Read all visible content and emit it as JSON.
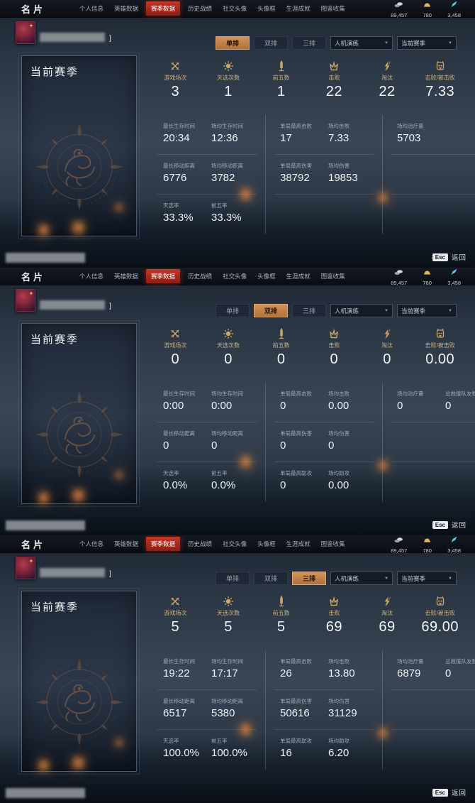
{
  "chrome": {
    "title": "名片",
    "tabs": [
      "个人信息",
      "英雄数据",
      "赛季数据",
      "历史战绩",
      "社交头像",
      "头像框",
      "生涯成就",
      "图鉴收集"
    ],
    "currencies": [
      {
        "name": "silver-coins",
        "value": "89,457"
      },
      {
        "name": "gold-ingot",
        "value": "780"
      },
      {
        "name": "blue-gem",
        "value": "3,458"
      }
    ],
    "esc_key": "Esc",
    "back_label": "返回"
  },
  "filters": {
    "queues": [
      "单排",
      "双排",
      "三排"
    ],
    "mode_dropdown": "人机演练",
    "season_dropdown": "当前赛季"
  },
  "card_title": "当前赛季",
  "name_suffix": "]",
  "panels": [
    {
      "summary": [
        {
          "label": "游戏场次",
          "value": "3"
        },
        {
          "label": "天选次数",
          "value": "1"
        },
        {
          "label": "前五数",
          "value": "1"
        },
        {
          "label": "击败",
          "value": "22"
        },
        {
          "label": "淘汰",
          "value": "22"
        },
        {
          "label": "击败/被击败",
          "value": "7.33"
        }
      ],
      "grid": [
        {
          "rows": [
            {
              "cells": [
                {
                  "label": "最长生存时间",
                  "value": "20:34"
                },
                {
                  "label": "场均生存时间",
                  "value": "12:36"
                }
              ]
            },
            {
              "cells": [
                {
                  "label": "最长移动距离",
                  "value": "6776"
                },
                {
                  "label": "场均移动距离",
                  "value": "3782"
                }
              ]
            },
            {
              "cells": [
                {
                  "label": "天选率",
                  "value": "33.3%"
                },
                {
                  "label": "前五率",
                  "value": "33.3%"
                }
              ]
            }
          ]
        },
        {
          "rows": [
            {
              "cells": [
                {
                  "label": "单局最高击败",
                  "value": "17"
                },
                {
                  "label": "场均击败",
                  "value": "7.33"
                }
              ]
            },
            {
              "cells": [
                {
                  "label": "单局最高伤害",
                  "value": "38792"
                },
                {
                  "label": "场均伤害",
                  "value": "19853"
                }
              ]
            },
            {
              "cells": [
                {
                  "label": "",
                  "value": ""
                },
                {
                  "label": "",
                  "value": ""
                }
              ]
            }
          ]
        },
        {
          "rows": [
            {
              "cells": [
                {
                  "label": "场均治疗量",
                  "value": "5703"
                },
                {
                  "label": "",
                  "value": ""
                }
              ]
            },
            {
              "cells": [
                {
                  "label": "",
                  "value": ""
                },
                {
                  "label": "",
                  "value": ""
                }
              ]
            },
            {
              "cells": [
                {
                  "label": "",
                  "value": ""
                },
                {
                  "label": "",
                  "value": ""
                }
              ]
            }
          ]
        }
      ]
    },
    {
      "summary": [
        {
          "label": "游戏场次",
          "value": "0"
        },
        {
          "label": "天选次数",
          "value": "0"
        },
        {
          "label": "前五数",
          "value": "0"
        },
        {
          "label": "击败",
          "value": "0"
        },
        {
          "label": "淘汰",
          "value": "0"
        },
        {
          "label": "击败/被击败",
          "value": "0.00"
        }
      ],
      "grid": [
        {
          "rows": [
            {
              "cells": [
                {
                  "label": "最长生存时间",
                  "value": "0:00"
                },
                {
                  "label": "场均生存时间",
                  "value": "0:00"
                }
              ]
            },
            {
              "cells": [
                {
                  "label": "最长移动距离",
                  "value": "0"
                },
                {
                  "label": "场均移动距离",
                  "value": "0"
                }
              ]
            },
            {
              "cells": [
                {
                  "label": "天选率",
                  "value": "0.0%"
                },
                {
                  "label": "前五率",
                  "value": "0.0%"
                }
              ]
            }
          ]
        },
        {
          "rows": [
            {
              "cells": [
                {
                  "label": "单局最高击败",
                  "value": "0"
                },
                {
                  "label": "场均击败",
                  "value": "0.00"
                }
              ]
            },
            {
              "cells": [
                {
                  "label": "单局最高伤害",
                  "value": "0"
                },
                {
                  "label": "场均伤害",
                  "value": "0"
                }
              ]
            },
            {
              "cells": [
                {
                  "label": "单局最高助攻",
                  "value": "0"
                },
                {
                  "label": "场均助攻",
                  "value": "0.00"
                }
              ]
            }
          ]
        },
        {
          "rows": [
            {
              "cells": [
                {
                  "label": "场均治疗量",
                  "value": "0"
                },
                {
                  "label": "总救援队友数",
                  "value": "0"
                }
              ]
            },
            {
              "cells": [
                {
                  "label": "",
                  "value": ""
                },
                {
                  "label": "",
                  "value": ""
                }
              ]
            },
            {
              "cells": [
                {
                  "label": "",
                  "value": ""
                },
                {
                  "label": "",
                  "value": ""
                }
              ]
            }
          ]
        }
      ]
    },
    {
      "summary": [
        {
          "label": "游戏场次",
          "value": "5"
        },
        {
          "label": "天选次数",
          "value": "5"
        },
        {
          "label": "前五数",
          "value": "5"
        },
        {
          "label": "击败",
          "value": "69"
        },
        {
          "label": "淘汰",
          "value": "69"
        },
        {
          "label": "击败/被击败",
          "value": "69.00"
        }
      ],
      "grid": [
        {
          "rows": [
            {
              "cells": [
                {
                  "label": "最长生存时间",
                  "value": "19:22"
                },
                {
                  "label": "场均生存时间",
                  "value": "17:17"
                }
              ]
            },
            {
              "cells": [
                {
                  "label": "最长移动距离",
                  "value": "6517"
                },
                {
                  "label": "场均移动距离",
                  "value": "5380"
                }
              ]
            },
            {
              "cells": [
                {
                  "label": "天选率",
                  "value": "100.0%"
                },
                {
                  "label": "前五率",
                  "value": "100.0%"
                }
              ]
            }
          ]
        },
        {
          "rows": [
            {
              "cells": [
                {
                  "label": "单局最高击败",
                  "value": "26"
                },
                {
                  "label": "场均击败",
                  "value": "13.80"
                }
              ]
            },
            {
              "cells": [
                {
                  "label": "单局最高伤害",
                  "value": "50616"
                },
                {
                  "label": "场均伤害",
                  "value": "31129"
                }
              ]
            },
            {
              "cells": [
                {
                  "label": "单局最高助攻",
                  "value": "16"
                },
                {
                  "label": "场均助攻",
                  "value": "6.20"
                }
              ]
            }
          ]
        },
        {
          "rows": [
            {
              "cells": [
                {
                  "label": "场均治疗量",
                  "value": "6879"
                },
                {
                  "label": "总救援队友数",
                  "value": "0"
                }
              ]
            },
            {
              "cells": [
                {
                  "label": "",
                  "value": ""
                },
                {
                  "label": "",
                  "value": ""
                }
              ]
            },
            {
              "cells": [
                {
                  "label": "",
                  "value": ""
                },
                {
                  "label": "",
                  "value": ""
                }
              ]
            }
          ]
        }
      ]
    }
  ]
}
